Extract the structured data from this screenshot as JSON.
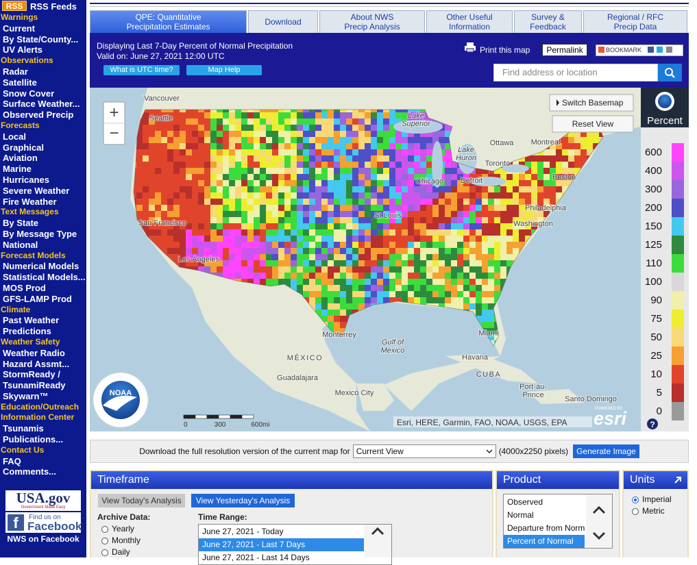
{
  "sidebar": {
    "rss_badge": "RSS",
    "rss_label": "RSS Feeds",
    "sections": [
      {
        "title": "Warnings",
        "items": [
          "Current",
          "By State/County...",
          "UV Alerts"
        ]
      },
      {
        "title": "Observations",
        "items": [
          "Radar",
          "Satellite",
          "Snow Cover",
          "Surface Weather...",
          "Observed Precip"
        ]
      },
      {
        "title": "Forecasts",
        "items": [
          "Local",
          "Graphical",
          "Aviation",
          "Marine",
          "Hurricanes",
          "Severe Weather",
          "Fire Weather"
        ]
      },
      {
        "title": "Text Messages",
        "items": [
          "By State",
          "By Message Type",
          "National"
        ]
      },
      {
        "title": "Forecast Models",
        "items": [
          "Numerical Models",
          "Statistical Models...",
          "MOS Prod",
          "GFS-LAMP Prod"
        ]
      },
      {
        "title": "Climate",
        "items": [
          "Past Weather",
          "Predictions"
        ]
      },
      {
        "title": "Weather Safety",
        "items": [
          "Weather Radio",
          "Hazard Assmt...",
          "StormReady / TsunamiReady",
          "Skywarn™"
        ]
      },
      {
        "title": "Education/Outreach",
        "items": []
      },
      {
        "title": "Information Center",
        "items": [
          "Tsunamis",
          "Publications..."
        ]
      },
      {
        "title": "Contact Us",
        "items": [
          "FAQ",
          "Comments..."
        ]
      }
    ],
    "usa_gov": "USA.gov",
    "usa_gov_tag": "Government Made Easy",
    "facebook_top": "Find us on",
    "facebook_name": "Facebook",
    "facebook_caption": "NWS on Facebook"
  },
  "tabs": [
    [
      "QPE: Quantitative",
      "Precipitation Estimates"
    ],
    [
      "Download"
    ],
    [
      "About NWS",
      "Precip Analysis"
    ],
    [
      "Other Useful",
      "Information"
    ],
    [
      "Survey &",
      "Feedback"
    ],
    [
      "Regional / RFC",
      "Precip Data"
    ]
  ],
  "header": {
    "line1": "Displaying Last 7-Day Percent of Normal Precipitation",
    "line2": "Valid on: June 27, 2021 12:00 UTC",
    "utc_button": "What is UTC time?",
    "help_button": "Map Help",
    "print": "Print this map",
    "permalink": "Permalink",
    "bookmark": "BOOKMARK",
    "search_placeholder": "Find address or location"
  },
  "map": {
    "zoom_in": "+",
    "zoom_out": "−",
    "switch_basemap": "Switch Basemap",
    "reset_view": "Reset View",
    "labels": [
      [
        "Vancouver"
      ],
      [
        "Seattle"
      ],
      [
        "Lake",
        "Superior"
      ],
      [
        "Ottawa"
      ],
      [
        "Montreal"
      ],
      [
        "Lake",
        "Huron"
      ],
      [
        "Toronto"
      ],
      [
        "Detroit"
      ],
      [
        "Chicago"
      ],
      [
        "Boston"
      ],
      [
        "Philadelphia"
      ],
      [
        "Washington"
      ],
      [
        "St Louis"
      ],
      [
        "San Francisco"
      ],
      [
        "Los Angeles"
      ],
      [
        "Monterrey"
      ],
      [
        "Gulf of",
        "Mexico"
      ],
      [
        "MÉXICO"
      ],
      [
        "Guadalajara"
      ],
      [
        "Mexico City"
      ],
      [
        "Miami"
      ],
      [
        "Havana"
      ],
      [
        "CUBA"
      ],
      [
        "Port-au-",
        "Prince"
      ],
      [
        "Santo Domingo"
      ]
    ],
    "scale": [
      "0",
      "300",
      "600mi"
    ],
    "attribution": "Esri, HERE, Garmin, FAO, NOAA, USGS, EPA",
    "esri_powered": "POWERED BY",
    "esri": "esri",
    "noaa": "NOAA",
    "help": "?"
  },
  "legend": {
    "title": "Percent",
    "items": [
      {
        "label": "600",
        "color": "#ff44ff"
      },
      {
        "label": "400",
        "color": "#cc55ee"
      },
      {
        "label": "300",
        "color": "#9966dd"
      },
      {
        "label": "200",
        "color": "#4f4fc8"
      },
      {
        "label": "150",
        "color": "#44c8ee"
      },
      {
        "label": "125",
        "color": "#2e8b3e"
      },
      {
        "label": "110",
        "color": "#3ddc3d"
      },
      {
        "label": "100",
        "color": "#d8d8d8"
      },
      {
        "label": "90",
        "color": "#f0f0a8"
      },
      {
        "label": "75",
        "color": "#eeee30"
      },
      {
        "label": "50",
        "color": "#f8d878"
      },
      {
        "label": "25",
        "color": "#f5a030"
      },
      {
        "label": "10",
        "color": "#e0452c"
      },
      {
        "label": "5",
        "color": "#b8302c"
      },
      {
        "label": "0",
        "color": "#9a9a9a"
      }
    ]
  },
  "download": {
    "text": "Download the full resolution version of the current map for",
    "select": "Current View",
    "size": "(4000x2250 pixels)",
    "button": "Generate Image"
  },
  "timeframe": {
    "title": "Timeframe",
    "today": "View Today's Analysis",
    "yesterday": "View Yesterday's Analysis",
    "archive_label": "Archive Data:",
    "archive_options": [
      "Yearly",
      "Monthly",
      "Daily"
    ],
    "range_label": "Time Range:",
    "ranges": [
      "June 27, 2021 - Today",
      "June 27, 2021 - Last 7 Days",
      "June 27, 2021 - Last 14 Days"
    ]
  },
  "product": {
    "title": "Product",
    "options": [
      "Observed",
      "Normal",
      "Departure from Normal",
      "Percent of Normal"
    ]
  },
  "units": {
    "title": "Units",
    "options": [
      "Imperial",
      "Metric"
    ]
  }
}
